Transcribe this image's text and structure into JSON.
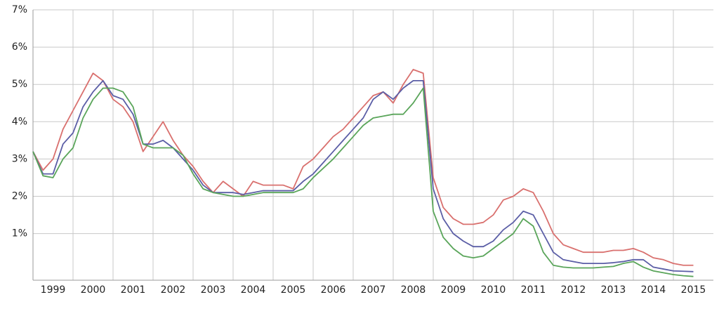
{
  "chart_data": {
    "type": "line",
    "x": [
      1999,
      1999.25,
      1999.5,
      1999.75,
      2000,
      2000.25,
      2000.5,
      2000.75,
      2001,
      2001.25,
      2001.5,
      2001.75,
      2002,
      2002.25,
      2002.5,
      2002.75,
      2003,
      2003.25,
      2003.5,
      2003.75,
      2004,
      2004.25,
      2004.5,
      2004.75,
      2005,
      2005.25,
      2005.5,
      2005.75,
      2006,
      2006.25,
      2006.5,
      2006.75,
      2007,
      2007.25,
      2007.5,
      2007.75,
      2008,
      2008.25,
      2008.5,
      2008.75,
      2009,
      2009.25,
      2009.5,
      2009.75,
      2010,
      2010.25,
      2010.5,
      2010.75,
      2011,
      2011.25,
      2011.5,
      2011.75,
      2012,
      2012.25,
      2012.5,
      2012.75,
      2013,
      2013.25,
      2013.5,
      2013.75,
      2014,
      2014.25,
      2014.5,
      2014.75,
      2015,
      2015.25,
      2015.5
    ],
    "series": [
      {
        "color": "#d9706e",
        "values": [
          3.2,
          2.7,
          3.0,
          3.8,
          4.3,
          4.8,
          5.3,
          5.1,
          4.6,
          4.4,
          4.0,
          3.2,
          3.6,
          4.0,
          3.5,
          3.1,
          2.8,
          2.4,
          2.1,
          2.4,
          2.2,
          2.0,
          2.4,
          2.3,
          2.3,
          2.3,
          2.2,
          2.8,
          3.0,
          3.3,
          3.6,
          3.8,
          4.1,
          4.4,
          4.7,
          4.8,
          4.5,
          5.0,
          5.4,
          5.3,
          2.5,
          1.7,
          1.4,
          1.25,
          1.25,
          1.3,
          1.5,
          1.9,
          2.0,
          2.2,
          2.1,
          1.6,
          1.0,
          0.7,
          0.6,
          0.5,
          0.5,
          0.5,
          0.55,
          0.55,
          0.6,
          0.5,
          0.35,
          0.3,
          0.2,
          0.15,
          0.15
        ]
      },
      {
        "color": "#5b5ea6",
        "values": [
          3.2,
          2.6,
          2.6,
          3.4,
          3.7,
          4.4,
          4.8,
          5.1,
          4.7,
          4.6,
          4.2,
          3.4,
          3.4,
          3.5,
          3.3,
          3.0,
          2.7,
          2.3,
          2.1,
          2.1,
          2.1,
          2.05,
          2.1,
          2.15,
          2.15,
          2.15,
          2.15,
          2.4,
          2.6,
          2.9,
          3.2,
          3.5,
          3.8,
          4.1,
          4.6,
          4.8,
          4.6,
          4.9,
          5.1,
          5.1,
          2.2,
          1.4,
          1.0,
          0.8,
          0.65,
          0.65,
          0.8,
          1.1,
          1.3,
          1.6,
          1.5,
          1.0,
          0.5,
          0.3,
          0.25,
          0.2,
          0.2,
          0.2,
          0.22,
          0.25,
          0.3,
          0.3,
          0.1,
          0.05,
          0.0,
          -0.01,
          -0.02
        ]
      },
      {
        "color": "#5aa55a",
        "values": [
          3.2,
          2.55,
          2.5,
          3.0,
          3.3,
          4.1,
          4.6,
          4.9,
          4.9,
          4.8,
          4.4,
          3.4,
          3.3,
          3.3,
          3.3,
          3.1,
          2.6,
          2.2,
          2.1,
          2.05,
          2.0,
          2.0,
          2.05,
          2.1,
          2.1,
          2.1,
          2.1,
          2.2,
          2.5,
          2.75,
          3.0,
          3.3,
          3.6,
          3.9,
          4.1,
          4.15,
          4.2,
          4.2,
          4.5,
          4.9,
          1.6,
          0.9,
          0.6,
          0.4,
          0.35,
          0.4,
          0.6,
          0.8,
          1.0,
          1.4,
          1.2,
          0.5,
          0.15,
          0.1,
          0.08,
          0.08,
          0.08,
          0.1,
          0.12,
          0.2,
          0.25,
          0.1,
          0.0,
          -0.05,
          -0.1,
          -0.13,
          -0.15
        ]
      }
    ],
    "xlim": [
      1999,
      2016
    ],
    "xticks": [
      1999,
      2000,
      2001,
      2002,
      2003,
      2004,
      2005,
      2006,
      2007,
      2008,
      2009,
      2010,
      2011,
      2012,
      2013,
      2014,
      2015
    ],
    "ylim": [
      -0.25,
      7
    ],
    "yticks": [
      {
        "value": 1,
        "label": "1%"
      },
      {
        "value": 2,
        "label": "2%"
      },
      {
        "value": 3,
        "label": "3%"
      },
      {
        "value": 4,
        "label": "4%"
      },
      {
        "value": 5,
        "label": "5%"
      },
      {
        "value": 6,
        "label": "6%"
      },
      {
        "value": 7,
        "label": "7%"
      }
    ],
    "grid": true
  }
}
